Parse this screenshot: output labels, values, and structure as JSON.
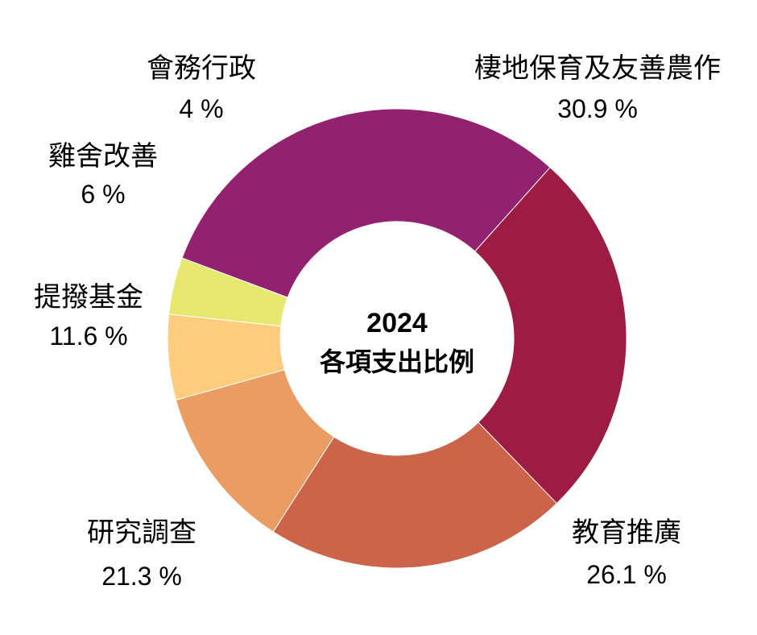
{
  "chart_data": {
    "type": "pie",
    "style": "donut",
    "center_title": [
      "2024",
      "各項支出比例"
    ],
    "unit": "%",
    "slices": [
      {
        "label": "棲地保育及友善農作",
        "value": 30.9,
        "value_text": "30.9 %",
        "color": "#922270"
      },
      {
        "label": "教育推廣",
        "value": 26.1,
        "value_text": "26.1 %",
        "color": "#9e1b43"
      },
      {
        "label": "研究調查",
        "value": 21.3,
        "value_text": "21.3 %",
        "color": "#cc644a"
      },
      {
        "label": "提撥基金",
        "value": 11.6,
        "value_text": "11.6 %",
        "color": "#eb9c62"
      },
      {
        "label": "雞舍改善",
        "value": 6,
        "value_text": "6 %",
        "color": "#fdcd7d"
      },
      {
        "label": "會務行政",
        "value": 4,
        "value_text": "4 %",
        "color": "#e7e86f"
      }
    ]
  }
}
